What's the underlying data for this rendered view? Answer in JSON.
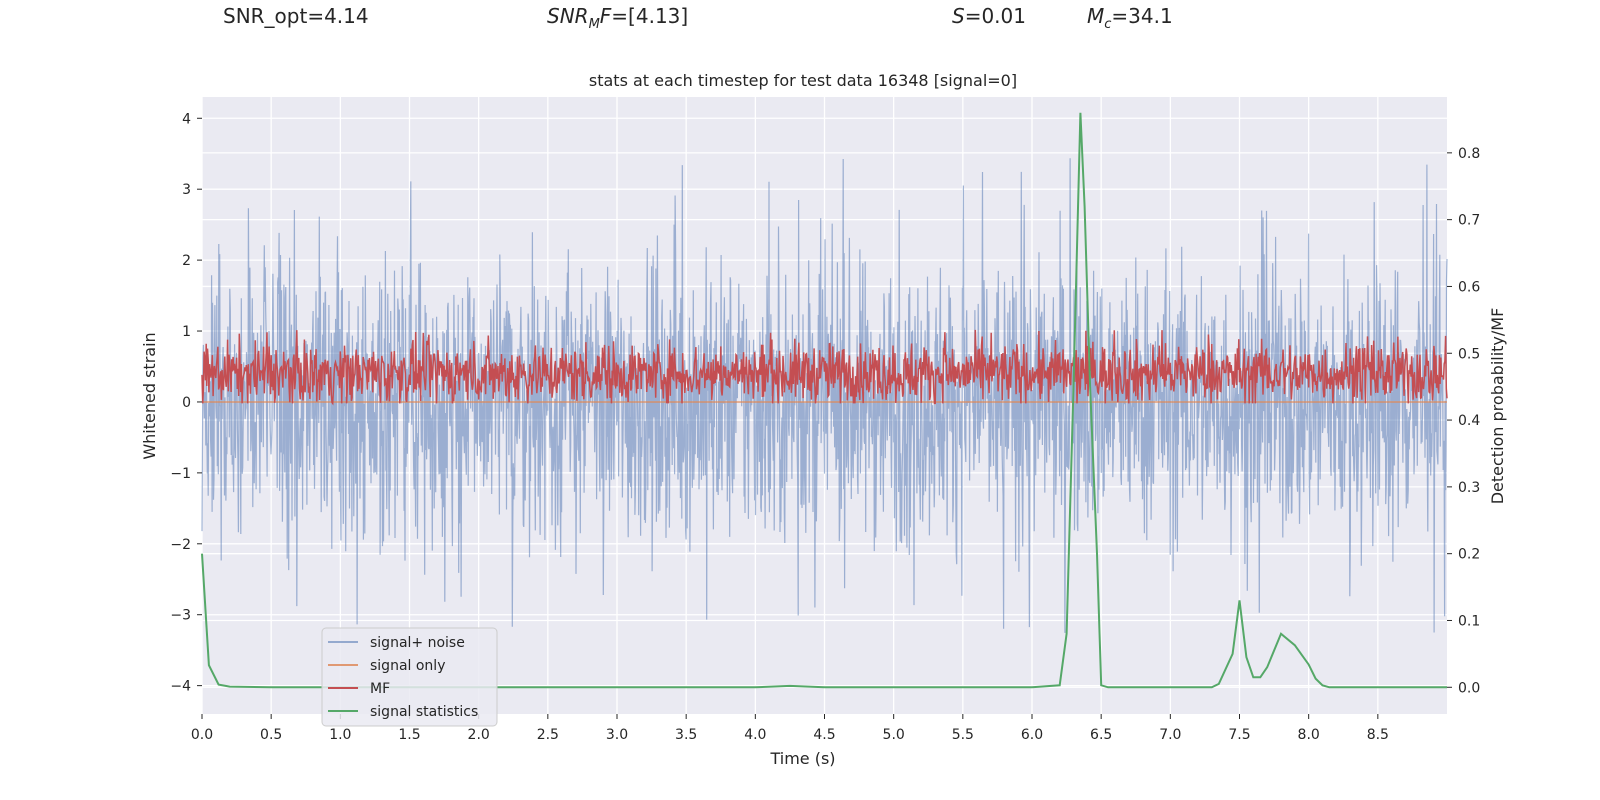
{
  "header": {
    "snr_opt": "SNR_opt=4.14",
    "snr_mf": {
      "sym": "SNR",
      "sub": "M",
      "rest": "F",
      "val": "=[4.13]"
    },
    "s": {
      "sym": "S",
      "val": "=0.01"
    },
    "mc": {
      "sym": "M",
      "sub": "c",
      "val": "=34.1"
    }
  },
  "colors": {
    "plot_bg": "#eaeaf2",
    "grid": "#ffffff",
    "noise": "#4c72b0",
    "signal": "#dd8452",
    "mf": "#c44e52",
    "stats": "#55a868"
  },
  "chart_data": {
    "type": "line",
    "title": "stats at each timestep for test data 16348 [signal=0]",
    "xlabel": "Time (s)",
    "ylabel": "Whitened strain",
    "y2label": "Detection probability/MF",
    "xlim": [
      0,
      9
    ],
    "ylim": [
      -4.4,
      4.3
    ],
    "y2lim": [
      -0.04,
      0.8836
    ],
    "xticks": [
      "0.0",
      "0.5",
      "1.0",
      "1.5",
      "2.0",
      "2.5",
      "3.0",
      "3.5",
      "4.0",
      "4.5",
      "5.0",
      "5.5",
      "6.0",
      "6.5",
      "7.0",
      "7.5",
      "8.0",
      "8.5"
    ],
    "yticks": [
      "−4",
      "−3",
      "−2",
      "−1",
      "0",
      "1",
      "2",
      "3",
      "4"
    ],
    "y2ticks": [
      "0.0",
      "0.1",
      "0.2",
      "0.3",
      "0.4",
      "0.5",
      "0.6",
      "0.7",
      "0.8"
    ],
    "grid": true,
    "legend_position": "lower-left",
    "legend": [
      "signal+ noise",
      "signal only",
      "MF",
      "signal statistics"
    ],
    "series": [
      {
        "name": "signal+ noise",
        "axis": "left",
        "description": "dense noise trace roughly between -2.5 and +2.5, extremes",
        "max": 3.9,
        "min": -4.1
      },
      {
        "name": "signal only",
        "axis": "left",
        "x": [
          0,
          9
        ],
        "y": [
          0,
          0
        ]
      },
      {
        "name": "MF",
        "axis": "right",
        "range": [
          0.43,
          0.51
        ],
        "peak": 0.535
      },
      {
        "name": "signal statistics",
        "axis": "right",
        "x": [
          0.0,
          0.05,
          0.12,
          0.2,
          0.5,
          1.0,
          2.0,
          3.0,
          4.0,
          4.25,
          4.5,
          5.0,
          5.5,
          6.0,
          6.2,
          6.25,
          6.3,
          6.35,
          6.38,
          6.42,
          6.47,
          6.5,
          6.55,
          7.0,
          7.3,
          7.35,
          7.45,
          7.5,
          7.55,
          7.6,
          7.65,
          7.7,
          7.8,
          7.9,
          8.0,
          8.05,
          8.1,
          8.15,
          8.2,
          8.5,
          9.0
        ],
        "y": [
          0.2,
          0.033,
          0.004,
          0.001,
          0.0,
          0.0,
          0.0,
          0.0,
          0.0,
          0.002,
          0.0,
          0.0,
          0.0,
          0.0,
          0.003,
          0.08,
          0.45,
          0.86,
          0.72,
          0.45,
          0.2,
          0.003,
          0.0,
          0.0,
          0.0,
          0.005,
          0.05,
          0.13,
          0.045,
          0.015,
          0.015,
          0.03,
          0.08,
          0.063,
          0.034,
          0.013,
          0.003,
          0.0,
          0.0,
          0.0,
          0.0
        ]
      }
    ]
  }
}
